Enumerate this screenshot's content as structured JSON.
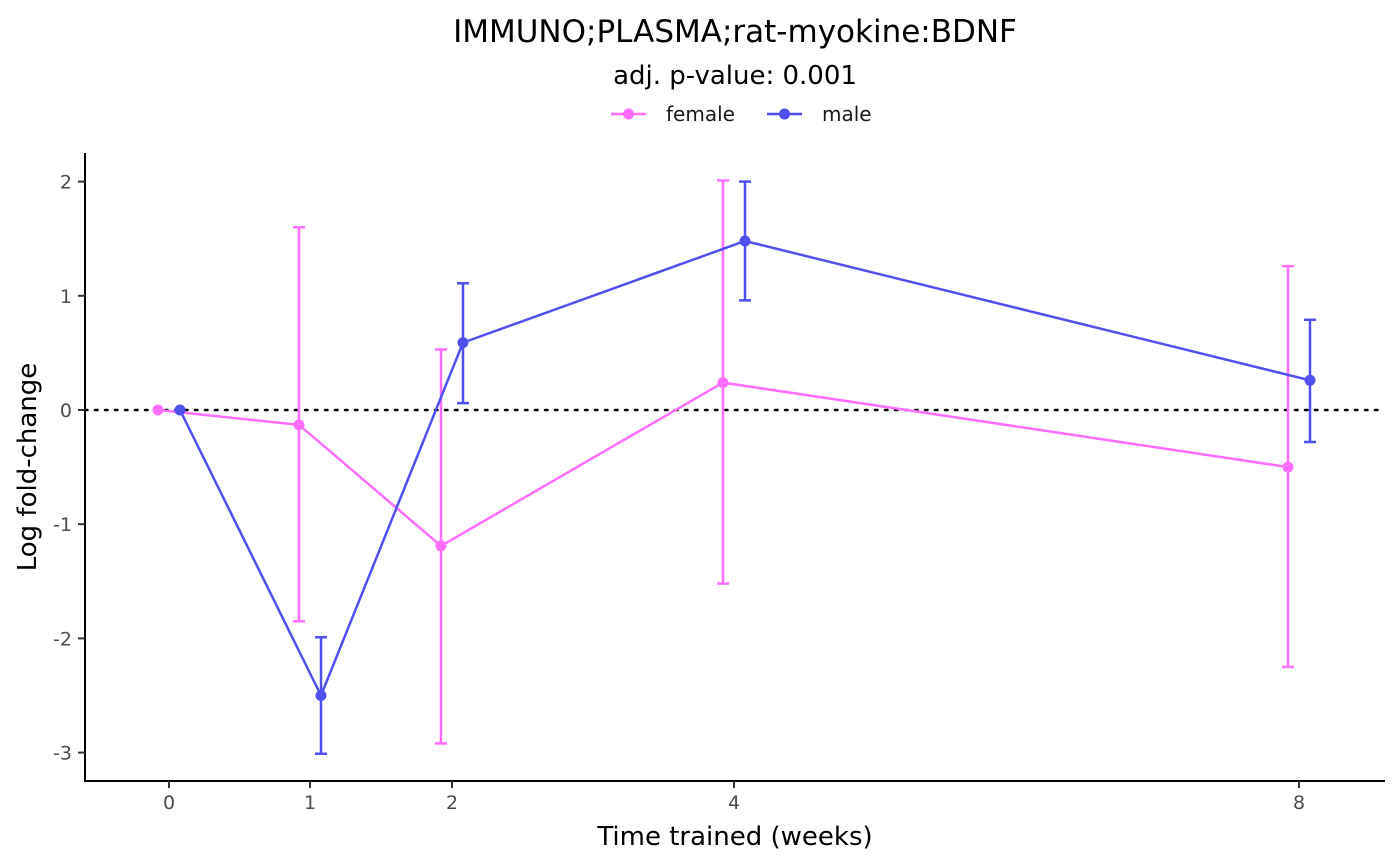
{
  "chart_data": {
    "type": "line",
    "title": "IMMUNO;PLASMA;rat-myokine:BDNF",
    "subtitle": "adj. p-value: 0.001",
    "xlabel": "Time trained (weeks)",
    "ylabel": "Log fold-change",
    "x_ticks": [
      "0",
      "1",
      "2",
      "4",
      "8"
    ],
    "y_ticks": [
      -3,
      -2,
      -1,
      0,
      1,
      2
    ],
    "y_tick_labels": [
      "-3",
      "-2",
      "-1",
      "0",
      "1",
      "2"
    ],
    "ylim": [
      -3.25,
      2.25
    ],
    "grid": false,
    "reference_line": {
      "y": 0,
      "style": "dotted"
    },
    "legend": {
      "placement": "top",
      "entries": [
        "female",
        "male"
      ]
    },
    "series": [
      {
        "name": "female",
        "color": "#ff6eff",
        "points": [
          {
            "x": "0",
            "y": 0.0,
            "lower": 0.0,
            "upper": 0.0
          },
          {
            "x": "1",
            "y": -0.13,
            "lower": -1.85,
            "upper": 1.6
          },
          {
            "x": "2",
            "y": -1.19,
            "lower": -2.92,
            "upper": 0.53
          },
          {
            "x": "4",
            "y": 0.24,
            "lower": -1.52,
            "upper": 2.01
          },
          {
            "x": "8",
            "y": -0.5,
            "lower": -2.25,
            "upper": 1.26
          }
        ]
      },
      {
        "name": "male",
        "color": "#5050f0",
        "points": [
          {
            "x": "0",
            "y": 0.0,
            "lower": 0.0,
            "upper": 0.0
          },
          {
            "x": "1",
            "y": -2.5,
            "lower": -3.01,
            "upper": -1.99
          },
          {
            "x": "2",
            "y": 0.59,
            "lower": 0.06,
            "upper": 1.11
          },
          {
            "x": "4",
            "y": 1.48,
            "lower": 0.96,
            "upper": 2.0
          },
          {
            "x": "8",
            "y": 0.26,
            "lower": -0.28,
            "upper": 0.79
          }
        ]
      }
    ]
  }
}
